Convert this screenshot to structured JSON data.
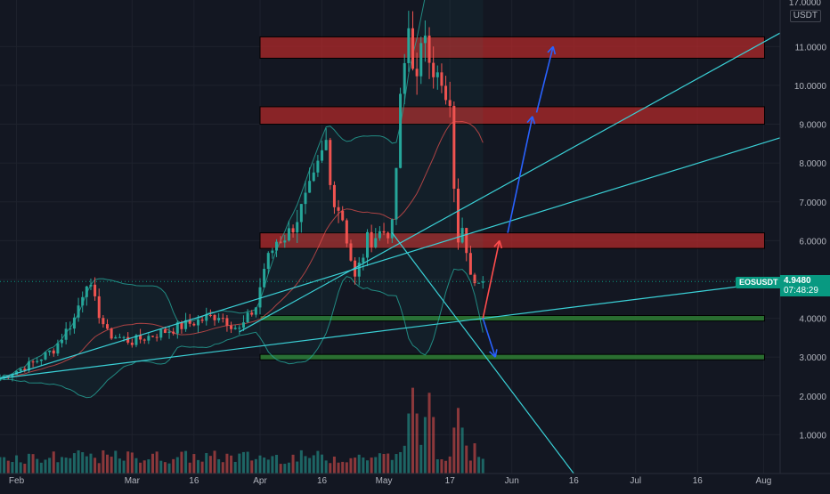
{
  "header": {
    "top_price": "17.0000",
    "currency": "USDT"
  },
  "symbol_tag": {
    "symbol": "EOSUSDT",
    "price": "4.9480",
    "countdown": "07:48:29",
    "color": "#089981"
  },
  "colors": {
    "background": "#131722",
    "bull": "#26a69a",
    "bear": "#ef5350",
    "trendline": "#3ad0d6",
    "arrow_up": "#ff4d4d",
    "arrow_blue": "#2962ff",
    "resistance_zone": "#b22a2a",
    "support_zone": "#2e7d32"
  },
  "chart_data": {
    "type": "candlestick",
    "symbol": "EOSUSDT",
    "y_scale": "linear",
    "ylim": [
      0,
      12.2
    ],
    "y_ticks": [
      1,
      2,
      3,
      4,
      5,
      6,
      7,
      8,
      9,
      10,
      11
    ],
    "y_tick_labels": [
      "1.0000",
      "2.0000",
      "3.0000",
      "4.0000",
      "",
      "6.0000",
      "7.0000",
      "8.0000",
      "9.0000",
      "10.0000",
      "11.0000"
    ],
    "x_start": "2021-01-28",
    "x_end": "2021-08-05",
    "x_ticks": [
      {
        "date": "2021-02-01",
        "label": "Feb"
      },
      {
        "date": "2021-03-01",
        "label": "Mar"
      },
      {
        "date": "2021-03-16",
        "label": "16"
      },
      {
        "date": "2021-04-01",
        "label": "Apr"
      },
      {
        "date": "2021-04-16",
        "label": "16"
      },
      {
        "date": "2021-05-01",
        "label": "May"
      },
      {
        "date": "2021-05-17",
        "label": "17"
      },
      {
        "date": "2021-06-01",
        "label": "Jun"
      },
      {
        "date": "2021-06-16",
        "label": "16"
      },
      {
        "date": "2021-07-01",
        "label": "Jul"
      },
      {
        "date": "2021-07-16",
        "label": "16"
      },
      {
        "date": "2021-08-01",
        "label": "Aug"
      }
    ],
    "close_keyframes": [
      [
        "2021-01-28",
        2.45
      ],
      [
        "2021-02-05",
        2.85
      ],
      [
        "2021-02-10",
        3.2
      ],
      [
        "2021-02-15",
        4.0
      ],
      [
        "2021-02-18",
        5.0
      ],
      [
        "2021-02-20",
        4.4
      ],
      [
        "2021-02-23",
        3.6
      ],
      [
        "2021-03-01",
        3.4
      ],
      [
        "2021-03-10",
        3.7
      ],
      [
        "2021-03-16",
        3.9
      ],
      [
        "2021-03-22",
        4.1
      ],
      [
        "2021-03-27",
        3.7
      ],
      [
        "2021-03-31",
        4.3
      ],
      [
        "2021-04-02",
        5.3
      ],
      [
        "2021-04-05",
        6.0
      ],
      [
        "2021-04-08",
        6.2
      ],
      [
        "2021-04-11",
        6.8
      ],
      [
        "2021-04-14",
        7.5
      ],
      [
        "2021-04-17",
        8.5
      ],
      [
        "2021-04-18",
        7.4
      ],
      [
        "2021-04-21",
        6.6
      ],
      [
        "2021-04-24",
        5.0
      ],
      [
        "2021-04-27",
        6.0
      ],
      [
        "2021-04-30",
        6.2
      ],
      [
        "2021-05-03",
        6.3
      ],
      [
        "2021-05-05",
        9.5
      ],
      [
        "2021-05-07",
        11.5
      ],
      [
        "2021-05-09",
        10.0
      ],
      [
        "2021-05-11",
        11.5
      ],
      [
        "2021-05-13",
        10.5
      ],
      [
        "2021-05-16",
        9.5
      ],
      [
        "2021-05-17",
        9.2
      ],
      [
        "2021-05-19",
        5.8
      ],
      [
        "2021-05-20",
        6.5
      ],
      [
        "2021-05-22",
        5.3
      ],
      [
        "2021-05-24",
        4.9
      ],
      [
        "2021-05-25",
        4.95
      ]
    ],
    "volume_peaks": [
      [
        "2021-02-17",
        0.55
      ],
      [
        "2021-04-13",
        0.4
      ],
      [
        "2021-05-06",
        0.55
      ],
      [
        "2021-05-08",
        1.7
      ],
      [
        "2021-05-12",
        1.6
      ],
      [
        "2021-05-19",
        1.3
      ]
    ],
    "resistance_zones": [
      [
        10.7,
        11.25
      ],
      [
        9.0,
        9.45
      ],
      [
        5.8,
        6.2
      ]
    ],
    "support_zones": [
      [
        3.93,
        4.07
      ],
      [
        2.93,
        3.07
      ]
    ],
    "trendlines": [
      {
        "from": [
          "2021-01-28",
          2.45
        ],
        "to": [
          "2021-08-05",
          4.95
        ]
      },
      {
        "from": [
          "2021-01-28",
          2.45
        ],
        "to": [
          "2021-08-05",
          8.65
        ]
      },
      {
        "from": [
          "2021-03-27",
          3.65
        ],
        "to": [
          "2021-08-05",
          11.35
        ]
      },
      {
        "from": [
          "2021-05-03",
          6.2
        ],
        "to": [
          "2021-06-16",
          0
        ]
      }
    ],
    "arrows": [
      {
        "from": [
          "2021-05-25",
          4.0
        ],
        "to": [
          "2021-05-29",
          6.0
        ],
        "color": "red"
      },
      {
        "from": [
          "2021-05-31",
          6.2
        ],
        "to": [
          "2021-06-06",
          9.2
        ],
        "color": "blue"
      },
      {
        "from": [
          "2021-06-07",
          9.3
        ],
        "to": [
          "2021-06-11",
          11.0
        ],
        "color": "blue"
      },
      {
        "from": [
          "2021-05-25",
          4.0
        ],
        "to": [
          "2021-05-28",
          3.0
        ],
        "color": "blue"
      }
    ]
  }
}
